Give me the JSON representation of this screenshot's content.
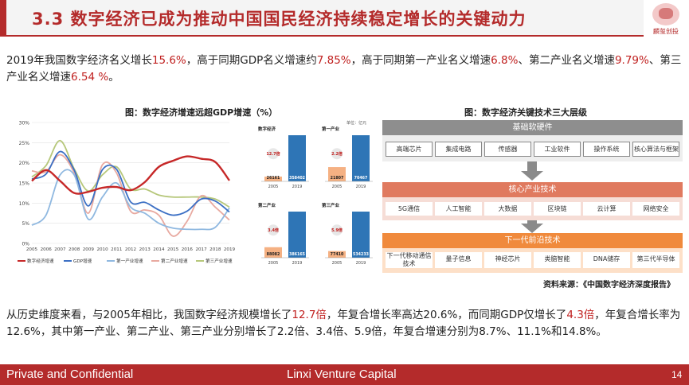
{
  "header": {
    "title": "3.3 数字经济已成为推动中国国民经济持续稳定增长的关键动力",
    "logo_text": "麟玺创投"
  },
  "para1": {
    "parts": [
      {
        "text": "2019年我国数字经济名义增长",
        "red": false
      },
      {
        "text": "15.6%",
        "red": true
      },
      {
        "text": "，高于同期GDP名义增速约",
        "red": false
      },
      {
        "text": "7.85%",
        "red": true
      },
      {
        "text": "，高于同期第一产业名义增速",
        "red": false
      },
      {
        "text": "6.8%",
        "red": true
      },
      {
        "text": "、第二产业名义增速",
        "red": false
      },
      {
        "text": "9.79%",
        "red": true
      },
      {
        "text": "、第三产业名义增速",
        "red": false
      },
      {
        "text": "6.54 %",
        "red": true
      },
      {
        "text": "。",
        "red": false
      }
    ]
  },
  "para2": {
    "parts": [
      {
        "text": "从历史维度来看，与2005年相比，我国数字经济规模增长了",
        "red": false
      },
      {
        "text": "12.7倍",
        "red": true
      },
      {
        "text": "，年复合增长率高达20.6%，而同期GDP仅增长了",
        "red": false
      },
      {
        "text": "4.3倍",
        "red": true
      },
      {
        "text": "，年复合增长率为12.6%，其中第一产业、第二产业、第三产业分别增长了2.2倍、3.4倍、5.9倍，年复合增速分别为8.7%、11.1%和14.8%。",
        "red": false
      }
    ]
  },
  "left_figure": {
    "title": "图：数字经济增速远超GDP增速（%）"
  },
  "right_figure": {
    "title": "图：数字经济关键技术三大层级"
  },
  "chart_data": [
    {
      "type": "line",
      "x": [
        "2005",
        "2006",
        "2007",
        "2008",
        "2009",
        "2010",
        "2011",
        "2012",
        "2013",
        "2014",
        "2015",
        "2016",
        "2017",
        "2018",
        "2019"
      ],
      "ylim": [
        0,
        30
      ],
      "yticks": [
        "0%",
        "5%",
        "10%",
        "15%",
        "20%",
        "25%",
        "30%"
      ],
      "series": [
        {
          "name": "数字经济增速",
          "color": "#c62828",
          "values": [
            15.5,
            18.2,
            15.5,
            12.5,
            12.8,
            13.8,
            14.0,
            13.2,
            15.2,
            19.0,
            20.5,
            21.6,
            21.0,
            20.2,
            15.6
          ]
        },
        {
          "name": "GDP增速",
          "color": "#3b6fc4",
          "values": [
            16.0,
            17.2,
            22.8,
            18.2,
            9.3,
            18.3,
            18.4,
            10.3,
            10.2,
            8.3,
            7.0,
            8.0,
            11.0,
            10.5,
            7.8
          ]
        },
        {
          "name": "第一产业增速",
          "color": "#8fb8e0",
          "values": [
            4.5,
            7.0,
            17.0,
            17.0,
            6.0,
            11.5,
            15.0,
            9.0,
            7.5,
            5.0,
            3.8,
            3.5,
            3.5,
            4.0,
            8.8
          ]
        },
        {
          "name": "第二产业增速",
          "color": "#e8a9a0",
          "values": [
            18.0,
            17.8,
            22.0,
            17.5,
            7.5,
            19.5,
            17.5,
            8.0,
            8.3,
            7.0,
            1.8,
            5.5,
            11.8,
            9.0,
            5.8
          ]
        },
        {
          "name": "第三产业增速",
          "color": "#b6c77a",
          "values": [
            16.5,
            19.3,
            25.5,
            18.5,
            13.0,
            17.0,
            19.0,
            13.5,
            13.5,
            12.0,
            11.5,
            11.5,
            11.5,
            11.0,
            9.0
          ]
        }
      ]
    },
    {
      "type": "bar",
      "unit_label": "单位：亿元",
      "panels": [
        {
          "title": "数字经济",
          "categories": [
            "2005",
            "2019"
          ],
          "values": [
            26161,
            358402
          ],
          "ratio": "12.7倍"
        },
        {
          "title": "第一产业",
          "categories": [
            "2005",
            "2019"
          ],
          "values": [
            21807,
            70467
          ],
          "ratio": "2.2倍"
        },
        {
          "title": "第二产业",
          "categories": [
            "2005",
            "2019"
          ],
          "values": [
            88082,
            386165
          ],
          "ratio": "3.4倍"
        },
        {
          "title": "第三产业",
          "categories": [
            "2005",
            "2019"
          ],
          "values": [
            77410,
            534233
          ],
          "ratio": "5.9倍"
        }
      ]
    }
  ],
  "layers": [
    {
      "label": "基础软硬件",
      "items": [
        "高端芯片",
        "集成电路",
        "传感器",
        "工业软件",
        "操作系统",
        "核心算法与框架"
      ]
    },
    {
      "label": "核心产业技术",
      "items": [
        "5G通信",
        "人工智能",
        "大数据",
        "区块链",
        "云计算",
        "网络安全"
      ]
    },
    {
      "label": "下一代前沿技术",
      "items": [
        "下一代移动通信技术",
        "量子信息",
        "神经芯片",
        "类脑智能",
        "DNA储存",
        "第三代半导体"
      ]
    }
  ],
  "source": "资料来源：《中国数字经济深度报告》",
  "footer": {
    "left": "Private and Confidential",
    "center": "Linxi Venture Capital",
    "page": "14"
  },
  "colors": {
    "accent": "#b42b2b",
    "highlight": "#c0201f",
    "bar_2019": "#2e75b6",
    "bar_2005": "#f5b183"
  },
  "icons": {
    "arrow": "down-arrow-icon",
    "logo": "logo-icon"
  }
}
